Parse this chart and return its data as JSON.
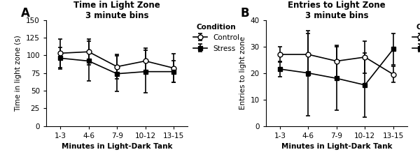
{
  "panel_A": {
    "title": "Time in Light Zone\n3 minute bins",
    "xlabel": "Minutes in Light-Dark Tank",
    "ylabel": "Time in light zone (s)",
    "xlabels": [
      "1-3",
      "4-6",
      "7-9",
      "10-12",
      "13-15"
    ],
    "ylim": [
      0,
      150
    ],
    "yticks": [
      0,
      25,
      50,
      75,
      100,
      125,
      150
    ],
    "control_mean": [
      103,
      105,
      84,
      92,
      82
    ],
    "control_err": [
      20,
      18,
      17,
      18,
      20
    ],
    "stress_mean": [
      96,
      92,
      74,
      77,
      77
    ],
    "stress_err": [
      15,
      28,
      25,
      30,
      15
    ]
  },
  "panel_B": {
    "title": "Entries to Light Zone\n3 minute bins",
    "xlabel": "Minutes in Light-Dark Tank",
    "ylabel": "Entries to light zone",
    "xlabels": [
      "1-3",
      "4-6",
      "7-9",
      "10-12",
      "13-15"
    ],
    "ylim": [
      0,
      40
    ],
    "yticks": [
      0,
      10,
      20,
      30,
      40
    ],
    "control_mean": [
      27,
      27,
      24.5,
      26,
      19.5
    ],
    "control_err": [
      3,
      8,
      6,
      6,
      3
    ],
    "stress_mean": [
      21.5,
      20,
      18,
      15.5,
      29
    ],
    "stress_err": [
      3,
      16,
      12,
      12,
      6
    ]
  },
  "legend_title": "Condition",
  "legend_control": "Control",
  "legend_stress": "Stress",
  "label_A": "A",
  "label_B": "B",
  "line_color": "black",
  "control_marker": "o",
  "stress_marker": "s",
  "marker_size": 5,
  "line_width": 1.2,
  "capsize": 2.5,
  "font_size_title": 8.5,
  "font_size_label": 7.5,
  "font_size_tick": 7.5,
  "font_size_legend": 7.5,
  "font_size_panel_label": 12
}
